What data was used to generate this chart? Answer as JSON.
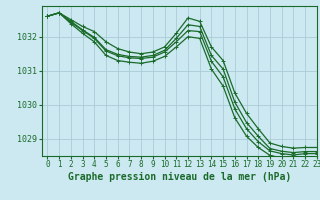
{
  "title": "Graphe pression niveau de la mer (hPa)",
  "background_color": "#cce8f0",
  "grid_color": "#aaccd8",
  "line_color": "#1a6b2a",
  "xlim": [
    -0.5,
    23
  ],
  "ylim": [
    1028.5,
    1032.9
  ],
  "yticks": [
    1029,
    1030,
    1031,
    1032
  ],
  "xticks": [
    0,
    1,
    2,
    3,
    4,
    5,
    6,
    7,
    8,
    9,
    10,
    11,
    12,
    13,
    14,
    15,
    16,
    17,
    18,
    19,
    20,
    21,
    22,
    23
  ],
  "series": [
    [
      1032.6,
      1032.7,
      1032.5,
      1032.3,
      1032.15,
      1031.85,
      1031.65,
      1031.55,
      1031.5,
      1031.55,
      1031.7,
      1032.1,
      1032.55,
      1032.45,
      1031.7,
      1031.3,
      1030.35,
      1029.75,
      1029.3,
      1028.88,
      1028.78,
      1028.73,
      1028.75,
      1028.75
    ],
    [
      1032.6,
      1032.7,
      1032.45,
      1032.2,
      1031.98,
      1031.62,
      1031.48,
      1031.42,
      1031.4,
      1031.45,
      1031.6,
      1031.95,
      1032.35,
      1032.3,
      1031.45,
      1031.05,
      1030.08,
      1029.48,
      1029.08,
      1028.72,
      1028.64,
      1028.6,
      1028.63,
      1028.63
    ],
    [
      1032.6,
      1032.7,
      1032.42,
      1032.18,
      1031.95,
      1031.58,
      1031.44,
      1031.38,
      1031.36,
      1031.4,
      1031.55,
      1031.85,
      1032.18,
      1032.15,
      1031.28,
      1030.82,
      1029.88,
      1029.3,
      1028.92,
      1028.65,
      1028.57,
      1028.53,
      1028.57,
      1028.57
    ],
    [
      1032.6,
      1032.7,
      1032.38,
      1032.1,
      1031.85,
      1031.45,
      1031.3,
      1031.25,
      1031.22,
      1031.28,
      1031.42,
      1031.7,
      1032.0,
      1031.95,
      1031.05,
      1030.55,
      1029.62,
      1029.08,
      1028.75,
      1028.52,
      1028.44,
      1028.4,
      1028.44,
      1028.44
    ]
  ],
  "marker": "+",
  "marker_size": 3.5,
  "linewidth": 0.9,
  "xlabel_fontsize": 7,
  "tick_fontsize": 5.5
}
